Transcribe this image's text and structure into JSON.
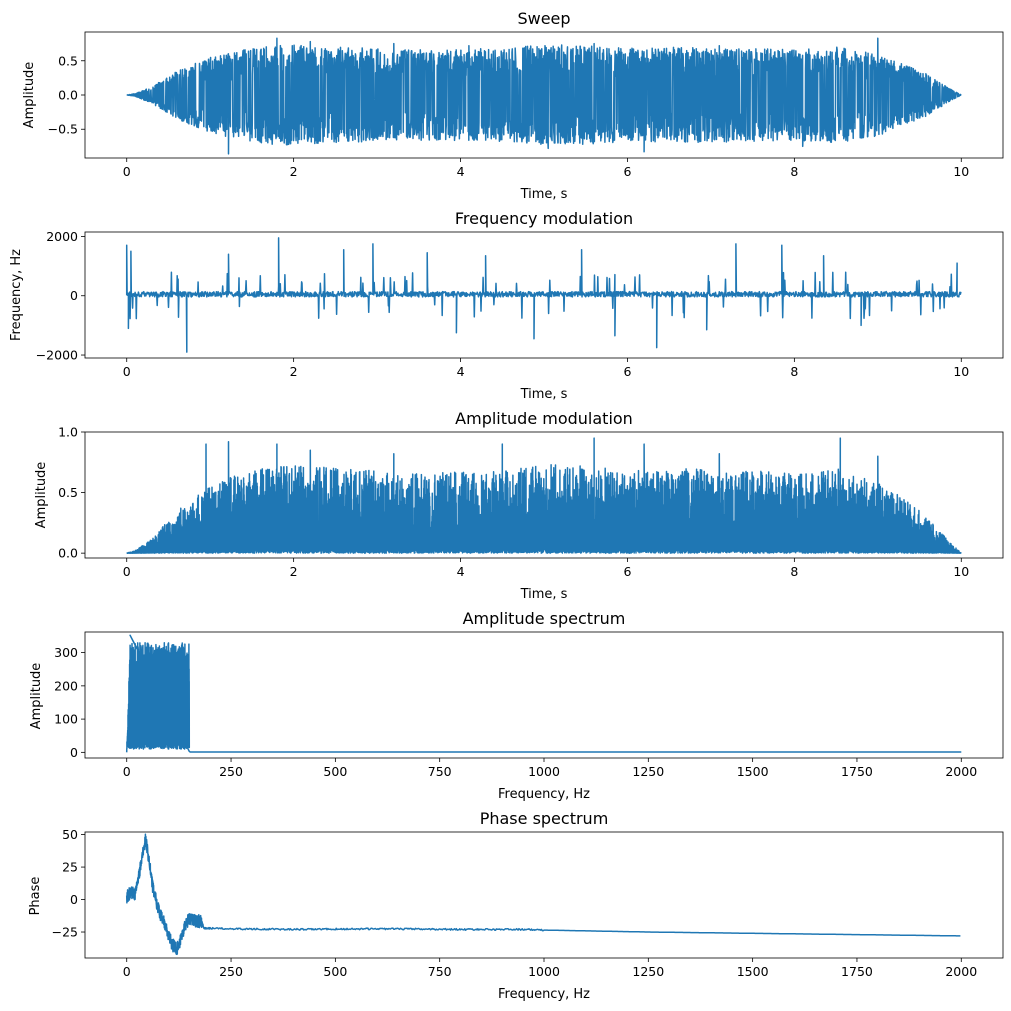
{
  "chart_data": [
    {
      "type": "line",
      "title": "Sweep",
      "xlabel": "Time, s",
      "ylabel": "Amplitude",
      "xlim": [
        -0.5,
        10.5
      ],
      "ylim": [
        -0.92,
        0.92
      ],
      "xticks": [
        0,
        2,
        4,
        6,
        8,
        10
      ],
      "xtick_labels": [
        "0",
        "2",
        "4",
        "6",
        "8",
        "10"
      ],
      "yticks": [
        -0.5,
        0.0,
        0.5
      ],
      "ytick_labels": [
        "−0.5",
        "0.0",
        "0.5"
      ],
      "grid": false,
      "color": "#1f77b4",
      "envelope": {
        "t": [
          0,
          0.1,
          0.3,
          0.6,
          1.0,
          1.2,
          1.5,
          1.8,
          2.5,
          3.5,
          4.5,
          5.0,
          5.5,
          6.0,
          6.5,
          7.5,
          8.0,
          8.5,
          9.0,
          9.3,
          9.6,
          9.85,
          10.0
        ],
        "peak": [
          0,
          0.02,
          0.12,
          0.35,
          0.55,
          0.62,
          0.68,
          0.74,
          0.7,
          0.66,
          0.68,
          0.74,
          0.72,
          0.68,
          0.7,
          0.68,
          0.66,
          0.7,
          0.6,
          0.45,
          0.3,
          0.1,
          0
        ]
      },
      "spikes": [
        {
          "x": 1.22,
          "y": -0.86
        },
        {
          "x": 1.8,
          "y": 0.83
        },
        {
          "x": 2.2,
          "y": 0.78
        },
        {
          "x": 2.6,
          "y": -0.55
        },
        {
          "x": 3.2,
          "y": 0.75
        },
        {
          "x": 4.1,
          "y": 0.72
        },
        {
          "x": 5.05,
          "y": -0.78
        },
        {
          "x": 5.6,
          "y": 0.75
        },
        {
          "x": 6.2,
          "y": -0.83
        },
        {
          "x": 7.1,
          "y": 0.72
        },
        {
          "x": 8.1,
          "y": -0.75
        },
        {
          "x": 9.0,
          "y": 0.83
        }
      ]
    },
    {
      "type": "line",
      "title": "Frequency modulation",
      "xlabel": "Time, s",
      "ylabel": "Frequency, Hz",
      "xlim": [
        -0.5,
        10.5
      ],
      "ylim": [
        -2100,
        2150
      ],
      "xticks": [
        0,
        2,
        4,
        6,
        8,
        10
      ],
      "xtick_labels": [
        "0",
        "2",
        "4",
        "6",
        "8",
        "10"
      ],
      "yticks": [
        -2000,
        0,
        2000
      ],
      "ytick_labels": [
        "−2000",
        "0",
        "2000"
      ],
      "grid": false,
      "color": "#1f77b4",
      "baseline": 50,
      "noise": 90,
      "spikes": [
        {
          "x": 0.0,
          "y": 1700
        },
        {
          "x": 0.02,
          "y": -1100
        },
        {
          "x": 0.05,
          "y": 1500
        },
        {
          "x": 0.72,
          "y": -1900
        },
        {
          "x": 1.22,
          "y": 1400
        },
        {
          "x": 1.82,
          "y": 1950
        },
        {
          "x": 2.6,
          "y": 1550
        },
        {
          "x": 2.95,
          "y": 1750
        },
        {
          "x": 3.6,
          "y": 1450
        },
        {
          "x": 4.3,
          "y": 1350
        },
        {
          "x": 4.88,
          "y": -1450
        },
        {
          "x": 5.45,
          "y": 1550
        },
        {
          "x": 5.85,
          "y": -1350
        },
        {
          "x": 6.35,
          "y": -1750
        },
        {
          "x": 7.3,
          "y": 1750
        },
        {
          "x": 7.85,
          "y": 1700
        },
        {
          "x": 8.35,
          "y": 1350
        },
        {
          "x": 8.8,
          "y": -1000
        },
        {
          "x": 9.95,
          "y": 1100
        },
        {
          "x": 3.95,
          "y": -1250
        },
        {
          "x": 6.95,
          "y": -1150
        }
      ]
    },
    {
      "type": "line",
      "title": "Amplitude modulation",
      "xlabel": "Time, s",
      "ylabel": "Amplitude",
      "xlim": [
        -0.5,
        10.5
      ],
      "ylim": [
        -0.04,
        1.0
      ],
      "xticks": [
        0,
        2,
        4,
        6,
        8,
        10
      ],
      "xtick_labels": [
        "0",
        "2",
        "4",
        "6",
        "8",
        "10"
      ],
      "yticks": [
        0.0,
        0.5,
        1.0
      ],
      "ytick_labels": [
        "0.0",
        "0.5",
        "1.0"
      ],
      "grid": false,
      "color": "#1f77b4",
      "envelope": {
        "t": [
          0,
          0.1,
          0.3,
          0.6,
          1.0,
          1.2,
          1.5,
          1.8,
          2.5,
          3.5,
          4.5,
          5.0,
          5.5,
          6.0,
          6.5,
          7.5,
          8.0,
          8.5,
          9.0,
          9.3,
          9.6,
          9.85,
          10.0
        ],
        "peak": [
          0,
          0.02,
          0.12,
          0.35,
          0.55,
          0.62,
          0.68,
          0.74,
          0.7,
          0.66,
          0.68,
          0.74,
          0.72,
          0.68,
          0.7,
          0.68,
          0.66,
          0.7,
          0.6,
          0.45,
          0.3,
          0.1,
          0
        ]
      },
      "spikes": [
        {
          "x": 0.95,
          "y": 0.9
        },
        {
          "x": 1.22,
          "y": 0.92
        },
        {
          "x": 1.8,
          "y": 0.9
        },
        {
          "x": 2.2,
          "y": 0.85
        },
        {
          "x": 4.5,
          "y": 0.9
        },
        {
          "x": 5.6,
          "y": 0.95
        },
        {
          "x": 6.2,
          "y": 0.9
        },
        {
          "x": 8.55,
          "y": 0.95
        },
        {
          "x": 9.0,
          "y": 0.8
        },
        {
          "x": 3.2,
          "y": 0.82
        },
        {
          "x": 7.1,
          "y": 0.82
        }
      ]
    },
    {
      "type": "line",
      "title": "Amplitude spectrum",
      "xlabel": "Frequency, Hz",
      "ylabel": "Amplitude",
      "xlim": [
        -100,
        2100
      ],
      "ylim": [
        -17,
        362
      ],
      "xticks": [
        0,
        250,
        500,
        750,
        1000,
        1250,
        1500,
        1750,
        2000
      ],
      "xtick_labels": [
        "0",
        "250",
        "500",
        "750",
        "1000",
        "1250",
        "1500",
        "1750",
        "2000"
      ],
      "yticks": [
        0,
        100,
        200,
        300
      ],
      "ytick_labels": [
        "0",
        "100",
        "200",
        "300"
      ],
      "grid": false,
      "color": "#1f77b4",
      "band": {
        "start": 0,
        "end": 150,
        "upper": 330,
        "lower": 10,
        "peak": 352
      }
    },
    {
      "type": "line",
      "title": "Phase spectrum",
      "xlabel": "Frequency, Hz",
      "ylabel": "Phase",
      "xlim": [
        -100,
        2100
      ],
      "ylim": [
        -45,
        52
      ],
      "xticks": [
        0,
        250,
        500,
        750,
        1000,
        1250,
        1500,
        1750,
        2000
      ],
      "xtick_labels": [
        "0",
        "250",
        "500",
        "750",
        "1000",
        "1250",
        "1500",
        "1750",
        "2000"
      ],
      "yticks": [
        -25,
        0,
        25,
        50
      ],
      "ytick_labels": [
        "−25",
        "0",
        "25",
        "50"
      ],
      "grid": false,
      "color": "#1f77b4",
      "x": [
        0,
        10,
        20,
        30,
        38,
        45,
        55,
        62,
        70,
        80,
        90,
        100,
        110,
        120,
        130,
        140,
        150,
        160,
        180,
        185,
        250,
        400,
        600,
        800,
        950,
        1000,
        1250,
        1500,
        1750,
        2000
      ],
      "y": [
        2,
        6,
        4,
        20,
        35,
        46,
        28,
        10,
        0,
        -12,
        -18,
        -28,
        -35,
        -38,
        -30,
        -20,
        -14,
        -16,
        -17,
        -22,
        -22.5,
        -23,
        -22.5,
        -23,
        -23,
        -23.5,
        -25,
        -26,
        -27,
        -28
      ]
    }
  ]
}
